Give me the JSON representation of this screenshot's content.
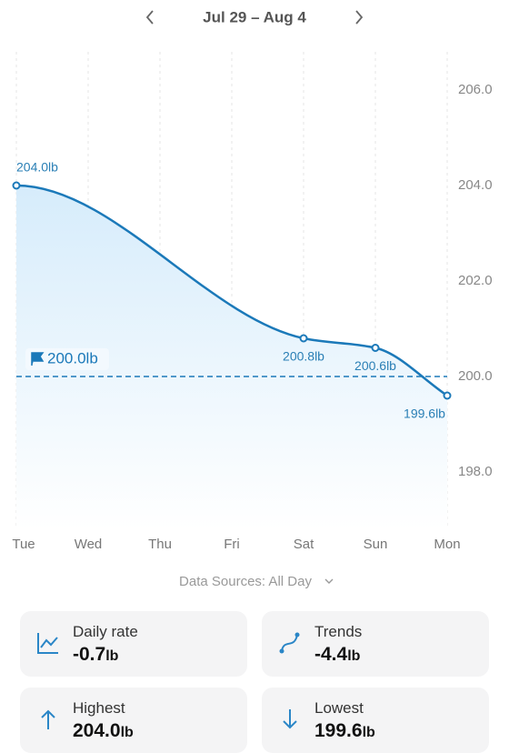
{
  "header": {
    "title": "Jul 29 – Aug 4"
  },
  "chart_data": {
    "type": "line",
    "categories": [
      "Tue",
      "Wed",
      "Thu",
      "Fri",
      "Sat",
      "Sun",
      "Mon"
    ],
    "series": [
      {
        "color": "#1b79b9",
        "x": [
          "Tue",
          "Sat",
          "Sun",
          "Mon"
        ],
        "values": [
          204.0,
          200.8,
          200.6,
          199.6
        ],
        "value_labels": [
          "204.0lb",
          "200.8lb",
          "200.6lb",
          "199.6lb"
        ]
      }
    ],
    "goal": 200,
    "goal_label": "200.0lb",
    "ylim": [
      196.8,
      206.8
    ],
    "yticks": [
      {
        "value": 198,
        "label": "198.0"
      },
      {
        "value": 200,
        "label": "200.0"
      },
      {
        "value": 202,
        "label": "202.0"
      },
      {
        "value": 204,
        "label": "204.0"
      },
      {
        "value": 206,
        "label": "206.0"
      }
    ],
    "grid": true
  },
  "source": "Data Sources: All Day",
  "stats": [
    {
      "label": "Daily rate",
      "value": "-0.7",
      "unit": "lb"
    },
    {
      "label": "Trends",
      "value": "-4.4",
      "unit": "lb"
    },
    {
      "label": "Highest",
      "value": "204.0",
      "unit": "lb"
    },
    {
      "label": "Lowest",
      "value": "199.6",
      "unit": "lb"
    }
  ]
}
